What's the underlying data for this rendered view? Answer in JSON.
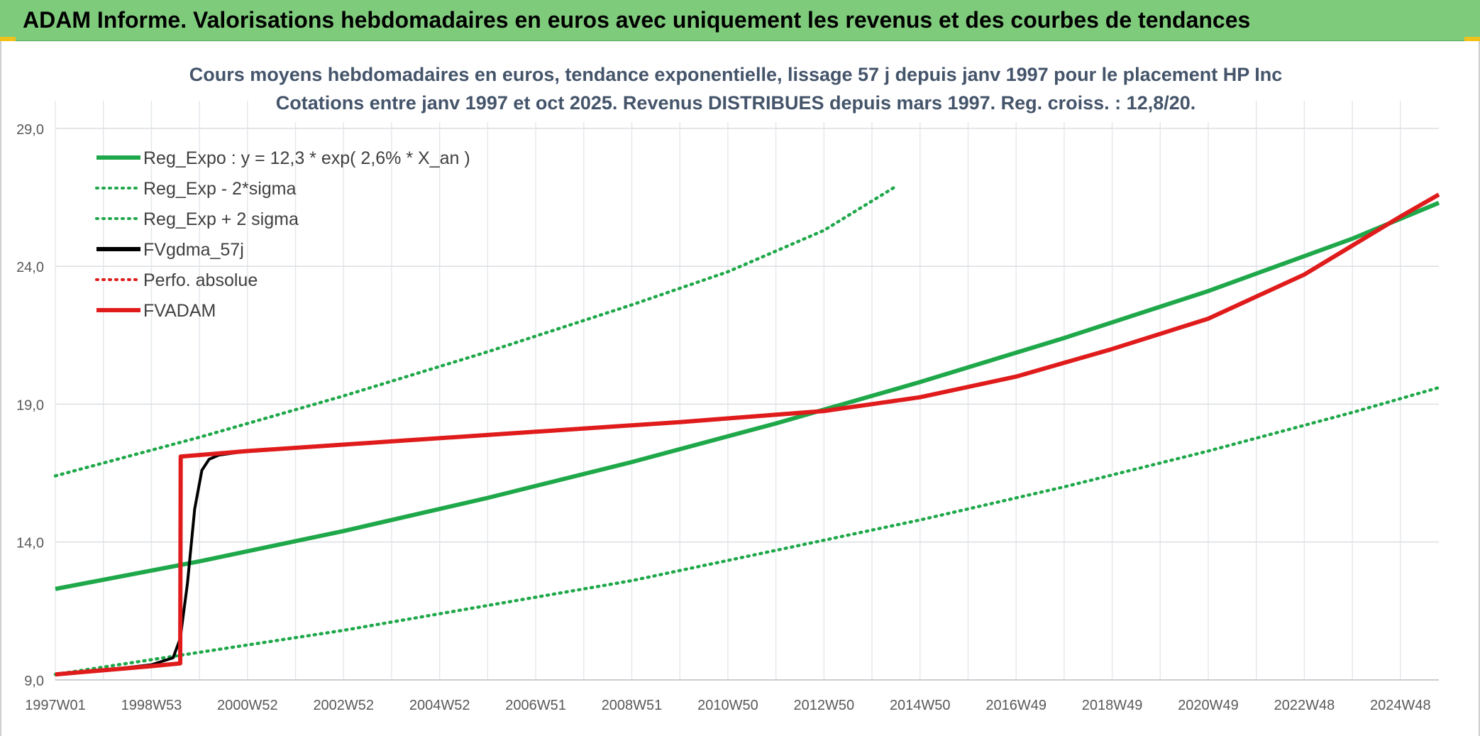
{
  "banner": {
    "title": "ADAM Informe. Valorisations hebdomadaires en euros avec uniquement les revenus et des courbes de tendances"
  },
  "chart_data": {
    "type": "line",
    "title_line1": "Cours moyens hebdomadaires en euros, tendance exponentielle, lissage 57 j depuis janv 1997 pour le placement HP Inc",
    "title_line2": "Cotations entre janv 1997 et oct 2025. Revenus DISTRIBUES depuis mars 1997. Reg. croiss. : 12,8/20.",
    "ylim": [
      9,
      30
    ],
    "yticks": [
      "9,0",
      "14,0",
      "19,0",
      "24,0",
      "29,0"
    ],
    "ytick_values": [
      9,
      14,
      19,
      24,
      29
    ],
    "xlim": [
      1997.0,
      2025.8
    ],
    "xtick_labels": [
      "1997W01",
      "1998W53",
      "2000W52",
      "2002W52",
      "2004W52",
      "2006W51",
      "2008W51",
      "2010W50",
      "2012W50",
      "2014W50",
      "2016W49",
      "2018W49",
      "2020W49",
      "2022W48",
      "2024W48"
    ],
    "xtick_values": [
      1997.0,
      1999.0,
      2001.0,
      2003.0,
      2005.0,
      2007.0,
      2009.0,
      2011.0,
      2013.0,
      2015.0,
      2017.0,
      2019.0,
      2021.0,
      2023.0,
      2025.0
    ],
    "grid": true,
    "legend_position": "top-left",
    "series": [
      {
        "name": "Reg_Expo : y = 12,3 * exp( 2,6% *  X_an )",
        "color": "#1fa84a",
        "style": "solid",
        "x": [
          1997.0,
          2000.0,
          2003.0,
          2006.0,
          2009.0,
          2012.0,
          2015.0,
          2018.0,
          2021.0,
          2024.0,
          2025.8
        ],
        "y": [
          12.3,
          13.3,
          14.4,
          15.6,
          16.9,
          18.3,
          19.8,
          21.4,
          23.1,
          25.0,
          26.3
        ]
      },
      {
        "name": "Reg_Exp - 2*sigma",
        "color": "#1fa84a",
        "style": "dotted",
        "x": [
          1997.0,
          2000.0,
          2003.0,
          2006.0,
          2009.0,
          2012.0,
          2015.0,
          2018.0,
          2021.0,
          2024.0,
          2025.8
        ],
        "y": [
          9.2,
          10.0,
          10.8,
          11.7,
          12.6,
          13.7,
          14.8,
          16.0,
          17.3,
          18.7,
          19.6
        ]
      },
      {
        "name": "Reg_Exp + 2 sigma",
        "color": "#1fa84a",
        "style": "dotted",
        "x": [
          1997.0,
          2000.0,
          2003.0,
          2006.0,
          2009.0,
          2011.0,
          2013.0,
          2014.5
        ],
        "y": [
          16.4,
          17.8,
          19.3,
          20.9,
          22.6,
          23.8,
          25.3,
          26.9
        ]
      },
      {
        "name": "FVgdma_57j",
        "color": "#000000",
        "style": "solid",
        "x": [
          1997.0,
          1998.0,
          1999.0,
          1999.45,
          1999.6,
          1999.75,
          1999.9,
          2000.05,
          2000.2,
          2000.4,
          2001.0
        ],
        "y": [
          9.2,
          9.35,
          9.55,
          9.8,
          10.5,
          12.5,
          15.2,
          16.6,
          17.0,
          17.15,
          17.3
        ]
      },
      {
        "name": "Perfo. absolue",
        "color": "#e01b1b",
        "style": "dotted",
        "x": [],
        "y": []
      },
      {
        "name": "FVADAM",
        "color": "#e01b1b",
        "style": "solid",
        "x": [
          1997.0,
          1998.0,
          1999.0,
          1999.6,
          1999.61,
          2001.0,
          2004.0,
          2007.0,
          2010.0,
          2013.0,
          2015.0,
          2017.0,
          2019.0,
          2021.0,
          2023.0,
          2025.0,
          2025.8
        ],
        "y": [
          9.2,
          9.35,
          9.5,
          9.6,
          17.1,
          17.3,
          17.65,
          18.0,
          18.35,
          18.75,
          19.25,
          20.0,
          21.0,
          22.1,
          23.7,
          25.8,
          26.6
        ]
      }
    ]
  }
}
